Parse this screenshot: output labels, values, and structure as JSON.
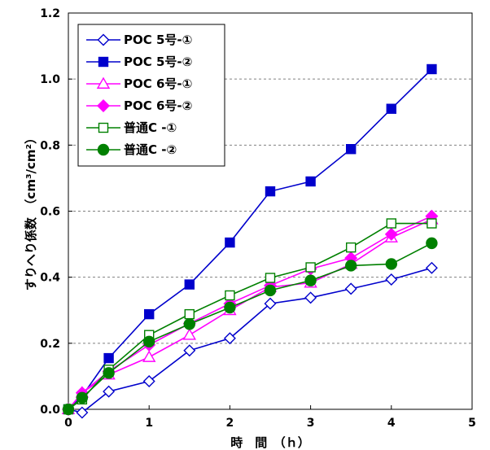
{
  "chart_data": {
    "type": "line",
    "xlabel": "時　間　（ｈ）",
    "ylabel": "すりへり係数　（cm³/cm²）",
    "xlim": [
      0,
      5
    ],
    "ylim": [
      0,
      1.2
    ],
    "x_ticks": [
      "0",
      "1",
      "2",
      "3",
      "4",
      "5"
    ],
    "y_ticks": [
      "0.0",
      "0.2",
      "0.4",
      "0.6",
      "0.8",
      "1.0",
      "1.2"
    ],
    "grid": "horizontal-dashed",
    "legend_position": "top-left",
    "series": [
      {
        "name": "POC 5号-①",
        "color": "#0000cc",
        "marker": "diamond-open",
        "x": [
          0,
          0.17,
          0.5,
          1,
          1.5,
          2,
          2.5,
          3,
          3.5,
          4,
          4.5
        ],
        "y": [
          0.0,
          -0.01,
          0.054,
          0.085,
          0.178,
          0.215,
          0.32,
          0.338,
          0.365,
          0.393,
          0.428
        ]
      },
      {
        "name": "POC 5号-②",
        "color": "#0000cc",
        "marker": "square-filled",
        "x": [
          0,
          0.17,
          0.5,
          1,
          1.5,
          2,
          2.5,
          3,
          3.5,
          4,
          4.5
        ],
        "y": [
          0.0,
          0.04,
          0.155,
          0.288,
          0.378,
          0.505,
          0.66,
          0.69,
          0.788,
          0.91,
          1.03
        ]
      },
      {
        "name": "POC 6号-①",
        "color": "#ff00ff",
        "marker": "triangle-open",
        "x": [
          0,
          0.17,
          0.5,
          1,
          1.5,
          2,
          2.5,
          3,
          3.5,
          4,
          4.5
        ],
        "y": [
          0.0,
          0.05,
          0.105,
          0.158,
          0.225,
          0.3,
          0.37,
          0.383,
          0.44,
          0.52,
          0.575
        ]
      },
      {
        "name": "POC 6号-②",
        "color": "#ff00ff",
        "marker": "diamond-filled",
        "x": [
          0,
          0.17,
          0.5,
          1,
          1.5,
          2,
          2.5,
          3,
          3.5,
          4,
          4.5
        ],
        "y": [
          0.0,
          0.05,
          0.115,
          0.195,
          0.26,
          0.32,
          0.375,
          0.425,
          0.458,
          0.53,
          0.585
        ]
      },
      {
        "name": "普通C -①",
        "color": "#008000",
        "marker": "square-open",
        "x": [
          0,
          0.17,
          0.5,
          1,
          1.5,
          2,
          2.5,
          3,
          3.5,
          4,
          4.5
        ],
        "y": [
          0.0,
          0.03,
          0.12,
          0.225,
          0.288,
          0.345,
          0.398,
          0.43,
          0.49,
          0.563,
          0.563
        ]
      },
      {
        "name": "普通C -②",
        "color": "#008000",
        "marker": "circle-filled",
        "x": [
          0,
          0.17,
          0.5,
          1,
          1.5,
          2,
          2.5,
          3,
          3.5,
          4,
          4.5
        ],
        "y": [
          0.0,
          0.035,
          0.11,
          0.205,
          0.258,
          0.308,
          0.36,
          0.39,
          0.435,
          0.44,
          0.503
        ]
      }
    ]
  }
}
